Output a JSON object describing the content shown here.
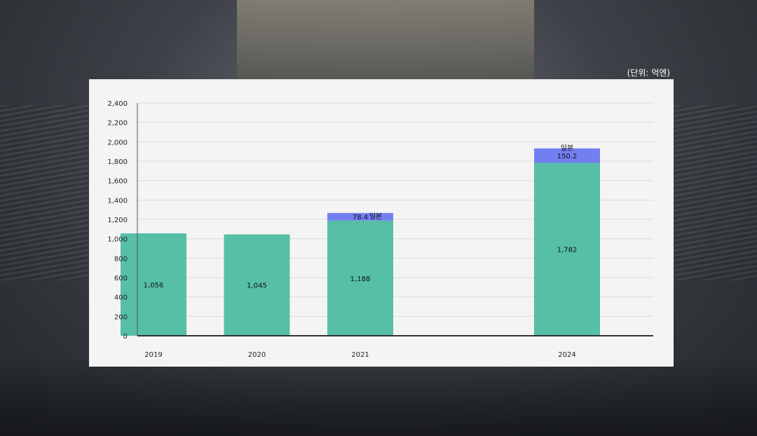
{
  "unit_label": "(단위: 억엔)",
  "chart_data": {
    "type": "bar",
    "stacked": true,
    "categories": [
      "2019",
      "2020",
      "2021",
      "2024"
    ],
    "category_slots": [
      0,
      1,
      2,
      4
    ],
    "slot_count": 5,
    "ylim": [
      0,
      2400
    ],
    "yticks": [
      0,
      200,
      400,
      600,
      800,
      1000,
      1200,
      1400,
      1600,
      1800,
      2000,
      2200,
      2400
    ],
    "ytick_labels": [
      "0",
      "200",
      "400",
      "600",
      "800",
      "1,000",
      "1,200",
      "1,400",
      "1,600",
      "1,800",
      "2,000",
      "2,200",
      "2,400"
    ],
    "grid": true,
    "series": [
      {
        "color": "#56bfa6",
        "values": [
          1056,
          1045,
          1188,
          1782
        ],
        "labels": [
          "1,056",
          "1,045",
          "1,188",
          "1,782"
        ]
      },
      {
        "name": "일본",
        "color": "#727ff0",
        "values": [
          null,
          null,
          78.4,
          150.2
        ],
        "labels": [
          "",
          "",
          "78.4",
          "150.2"
        ]
      }
    ]
  }
}
